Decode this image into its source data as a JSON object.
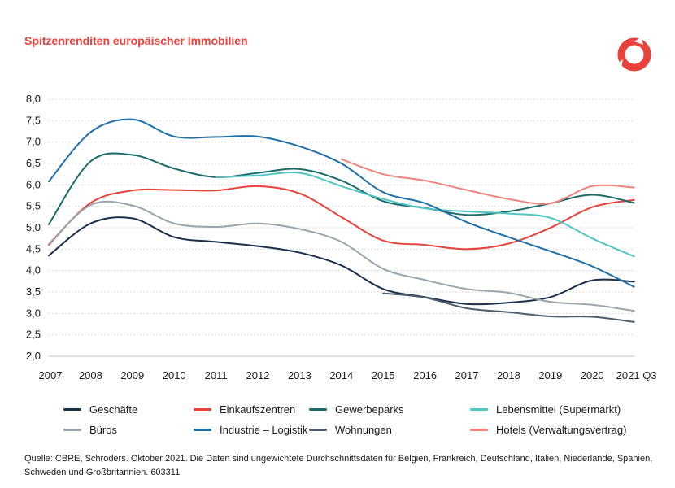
{
  "title": "Spitzenrenditen europäischer Immobilien",
  "logo_icon": "schroders-ring-logo",
  "source_text": "Quelle: CBRE, Schroders. Oktober 2021. Die Daten sind ungewichtete Durchschnittsdaten für Belgien, Frankreich, Deutschland, Italien, Niederlande, Spanien, Schweden und Großbritannien. 603311",
  "chart_data": {
    "type": "line",
    "title": "Spitzenrenditen europäischer Immobilien",
    "xlabel": "",
    "ylabel": "",
    "grid": true,
    "legend_position": "bottom",
    "ylim": [
      2.0,
      8.0
    ],
    "yticks": [
      "8,0",
      "7,5",
      "7,0",
      "6,5",
      "6,0",
      "5,5",
      "5,0",
      "4,5",
      "4,0",
      "3,5",
      "3,0",
      "2,5",
      "2,0"
    ],
    "x": [
      "2007",
      "2008",
      "2009",
      "2010",
      "2011",
      "2012",
      "2013",
      "2014",
      "2015",
      "2016",
      "2017",
      "2018",
      "2019",
      "2020",
      "2021 Q3"
    ],
    "series": [
      {
        "name": "Geschäfte",
        "color": "#1b2f4b",
        "values": [
          4.35,
          5.1,
          5.22,
          4.78,
          4.67,
          4.57,
          4.42,
          4.12,
          3.57,
          3.38,
          3.22,
          3.25,
          3.38,
          3.77,
          3.74
        ]
      },
      {
        "name": "Einkaufszentren",
        "color": "#e8423a",
        "values": [
          4.6,
          5.58,
          5.87,
          5.88,
          5.87,
          5.97,
          5.8,
          5.25,
          4.7,
          4.6,
          4.5,
          4.63,
          5.0,
          5.48,
          5.65
        ]
      },
      {
        "name": "Gewerbeparks",
        "color": "#1b6b69",
        "values": [
          5.08,
          6.55,
          6.7,
          6.38,
          6.18,
          6.28,
          6.37,
          6.1,
          5.62,
          5.46,
          5.3,
          5.38,
          5.57,
          5.77,
          5.58
        ]
      },
      {
        "name": "Lebensmittel (Supermarkt)",
        "color": "#4fc6c4",
        "values": [
          null,
          null,
          null,
          null,
          6.18,
          6.22,
          6.28,
          5.97,
          5.67,
          5.45,
          5.38,
          5.33,
          5.23,
          4.75,
          4.33
        ]
      },
      {
        "name": "Büros",
        "color": "#9aa4ad",
        "values": [
          4.62,
          5.53,
          5.52,
          5.1,
          5.02,
          5.1,
          4.97,
          4.67,
          4.04,
          3.78,
          3.57,
          3.48,
          3.27,
          3.2,
          3.06
        ]
      },
      {
        "name": "Industrie – Logistik",
        "color": "#1f6fa8",
        "values": [
          6.08,
          7.23,
          7.53,
          7.13,
          7.12,
          7.13,
          6.9,
          6.5,
          5.83,
          5.57,
          5.13,
          4.78,
          4.45,
          4.1,
          3.62
        ]
      },
      {
        "name": "Wohnungen",
        "color": "#4e5d6c",
        "values": [
          null,
          null,
          null,
          null,
          null,
          null,
          null,
          null,
          3.47,
          3.37,
          3.12,
          3.03,
          2.93,
          2.92,
          2.8
        ]
      },
      {
        "name": "Hotels (Verwaltungsvertrag)",
        "color": "#f0847c",
        "values": [
          null,
          null,
          null,
          null,
          null,
          null,
          null,
          6.6,
          6.25,
          6.1,
          5.88,
          5.67,
          5.57,
          5.97,
          5.94
        ]
      }
    ]
  }
}
